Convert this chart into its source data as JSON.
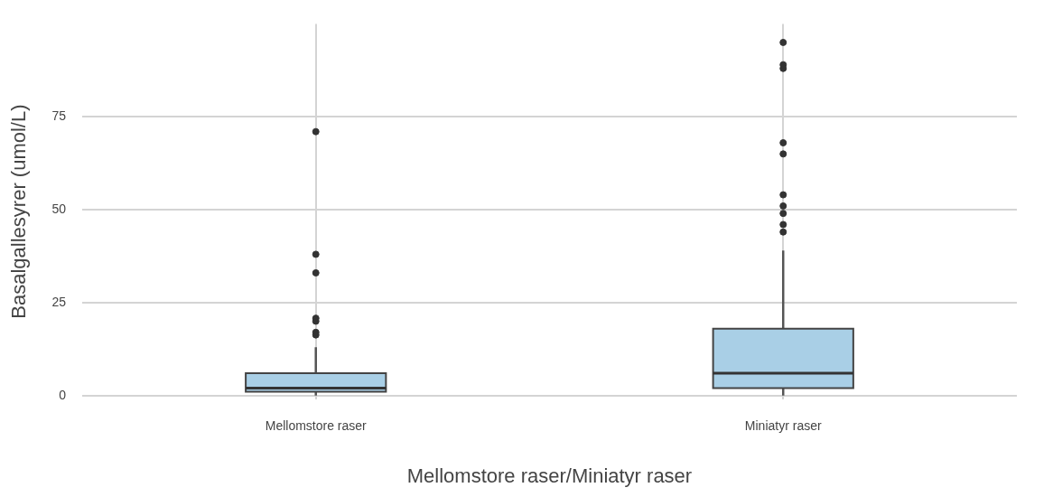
{
  "chart_data": {
    "type": "box",
    "xlabel": "Mellomstore raser/Miniatyr raser",
    "ylabel": "Basalgallesyrer (umol/L)",
    "categories": [
      "Mellomstore raser",
      "Miniatyr raser"
    ],
    "color": "#a9cfe6",
    "ylim": [
      -1,
      100
    ],
    "yticks": [
      0,
      25,
      50,
      75
    ],
    "grid": true,
    "legend": false,
    "boxes": [
      {
        "low": 0,
        "q1": 1,
        "median": 2,
        "q3": 6,
        "high": 13,
        "outliers": [
          16.3,
          17,
          20,
          20.8,
          33,
          38,
          71
        ]
      },
      {
        "low": 0,
        "q1": 2,
        "median": 6,
        "q3": 18,
        "high": 39,
        "outliers": [
          44,
          46,
          49,
          51,
          54,
          65,
          68,
          88,
          89,
          95
        ]
      }
    ]
  }
}
